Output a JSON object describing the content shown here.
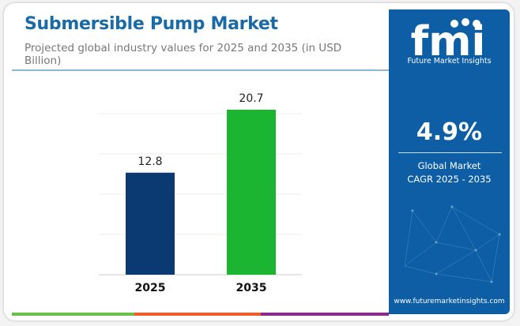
{
  "header": {
    "title": "Submersible Pump Market",
    "subtitle": "Projected global industry values for 2025 and 2035 (in USD Billion)"
  },
  "panel": {
    "logo_text": "fmi",
    "brand": "Future Market Insights",
    "cagr_value": "4.9%",
    "cagr_label_1": "Global Market",
    "cagr_label_2": "CAGR 2025 - 2035",
    "website": "www.futuremarketinsights.com"
  },
  "colors": {
    "title": "#1a6aa6",
    "panel": "#0d5ea5",
    "bar_2025": "#0b3a73",
    "bar_2035": "#1bb532",
    "strip": [
      "#6cc04a",
      "#f15a29",
      "#8b2a8b"
    ]
  },
  "chart_data": {
    "type": "bar",
    "categories": [
      "2025",
      "2035"
    ],
    "values": [
      12.8,
      20.7
    ],
    "data_labels": [
      "12.8",
      "20.7"
    ],
    "title": "Submersible Pump Market",
    "ylabel": "",
    "xlabel": "",
    "ylim": [
      0,
      20.7
    ],
    "grid": true,
    "colors": [
      "#0b3a73",
      "#1bb532"
    ]
  }
}
